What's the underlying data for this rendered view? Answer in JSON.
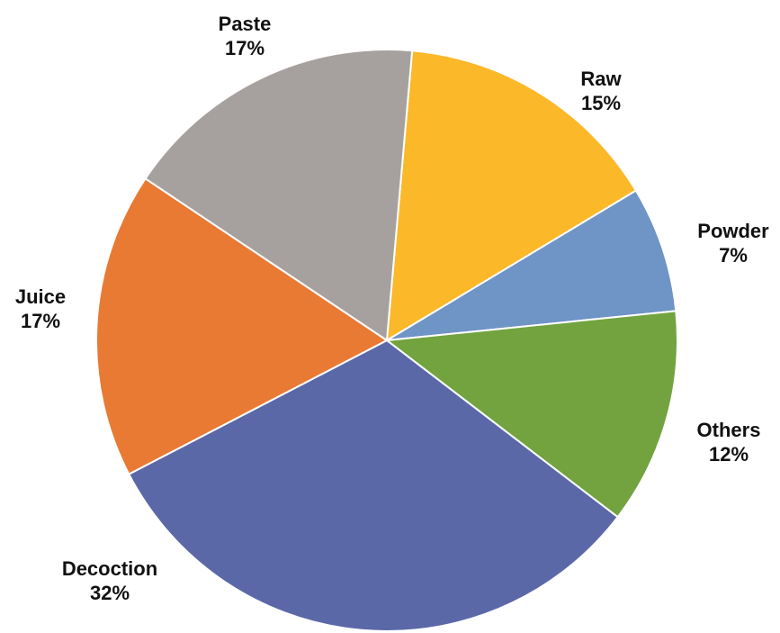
{
  "chart_data": {
    "type": "pie",
    "title": "",
    "slices": [
      {
        "label": "Raw",
        "value": 15,
        "value_label": "15%",
        "color": "#FBB829"
      },
      {
        "label": "Powder",
        "value": 7,
        "value_label": "7%",
        "color": "#6F94C6"
      },
      {
        "label": "Others",
        "value": 12,
        "value_label": "12%",
        "color": "#72A33F"
      },
      {
        "label": "Decoction",
        "value": 32,
        "value_label": "32%",
        "color": "#5B68A8"
      },
      {
        "label": "Juice",
        "value": 17,
        "value_label": "17%",
        "color": "#E87A34"
      },
      {
        "label": "Paste",
        "value": 17,
        "value_label": "17%",
        "color": "#A6A19E"
      }
    ],
    "legend": "none",
    "data_labels": "outside"
  }
}
